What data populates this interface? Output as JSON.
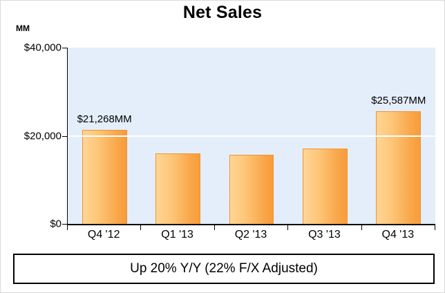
{
  "title": "Net Sales",
  "footer": "Up 20% Y/Y (22% F/X Adjusted)",
  "colors": {
    "bar_light": "#FFD596",
    "bar_dark": "#F89C3C",
    "bar_border": "#F09133",
    "plot_background": "#E4EEFA",
    "gridline": "#FFFFFF",
    "axis": "#000000"
  },
  "chart_data": {
    "type": "bar",
    "title": "Net Sales",
    "ylabel": "MM",
    "xlabel": "",
    "categories": [
      "Q4 '12",
      "Q1 '13",
      "Q2 '13",
      "Q3 '13",
      "Q4 '13"
    ],
    "values": [
      21268,
      16070,
      15704,
      17092,
      25587
    ],
    "data_labels": [
      "$21,268MM",
      null,
      null,
      null,
      "$25,587MM"
    ],
    "ylim": [
      0,
      40000
    ],
    "yticks": [
      0,
      20000,
      40000
    ],
    "ytick_labels": [
      "$0",
      "$20,000",
      "$40,000"
    ],
    "grid": true,
    "legend": "none",
    "annotation": "Up 20% Y/Y (22% F/X Adjusted)"
  }
}
